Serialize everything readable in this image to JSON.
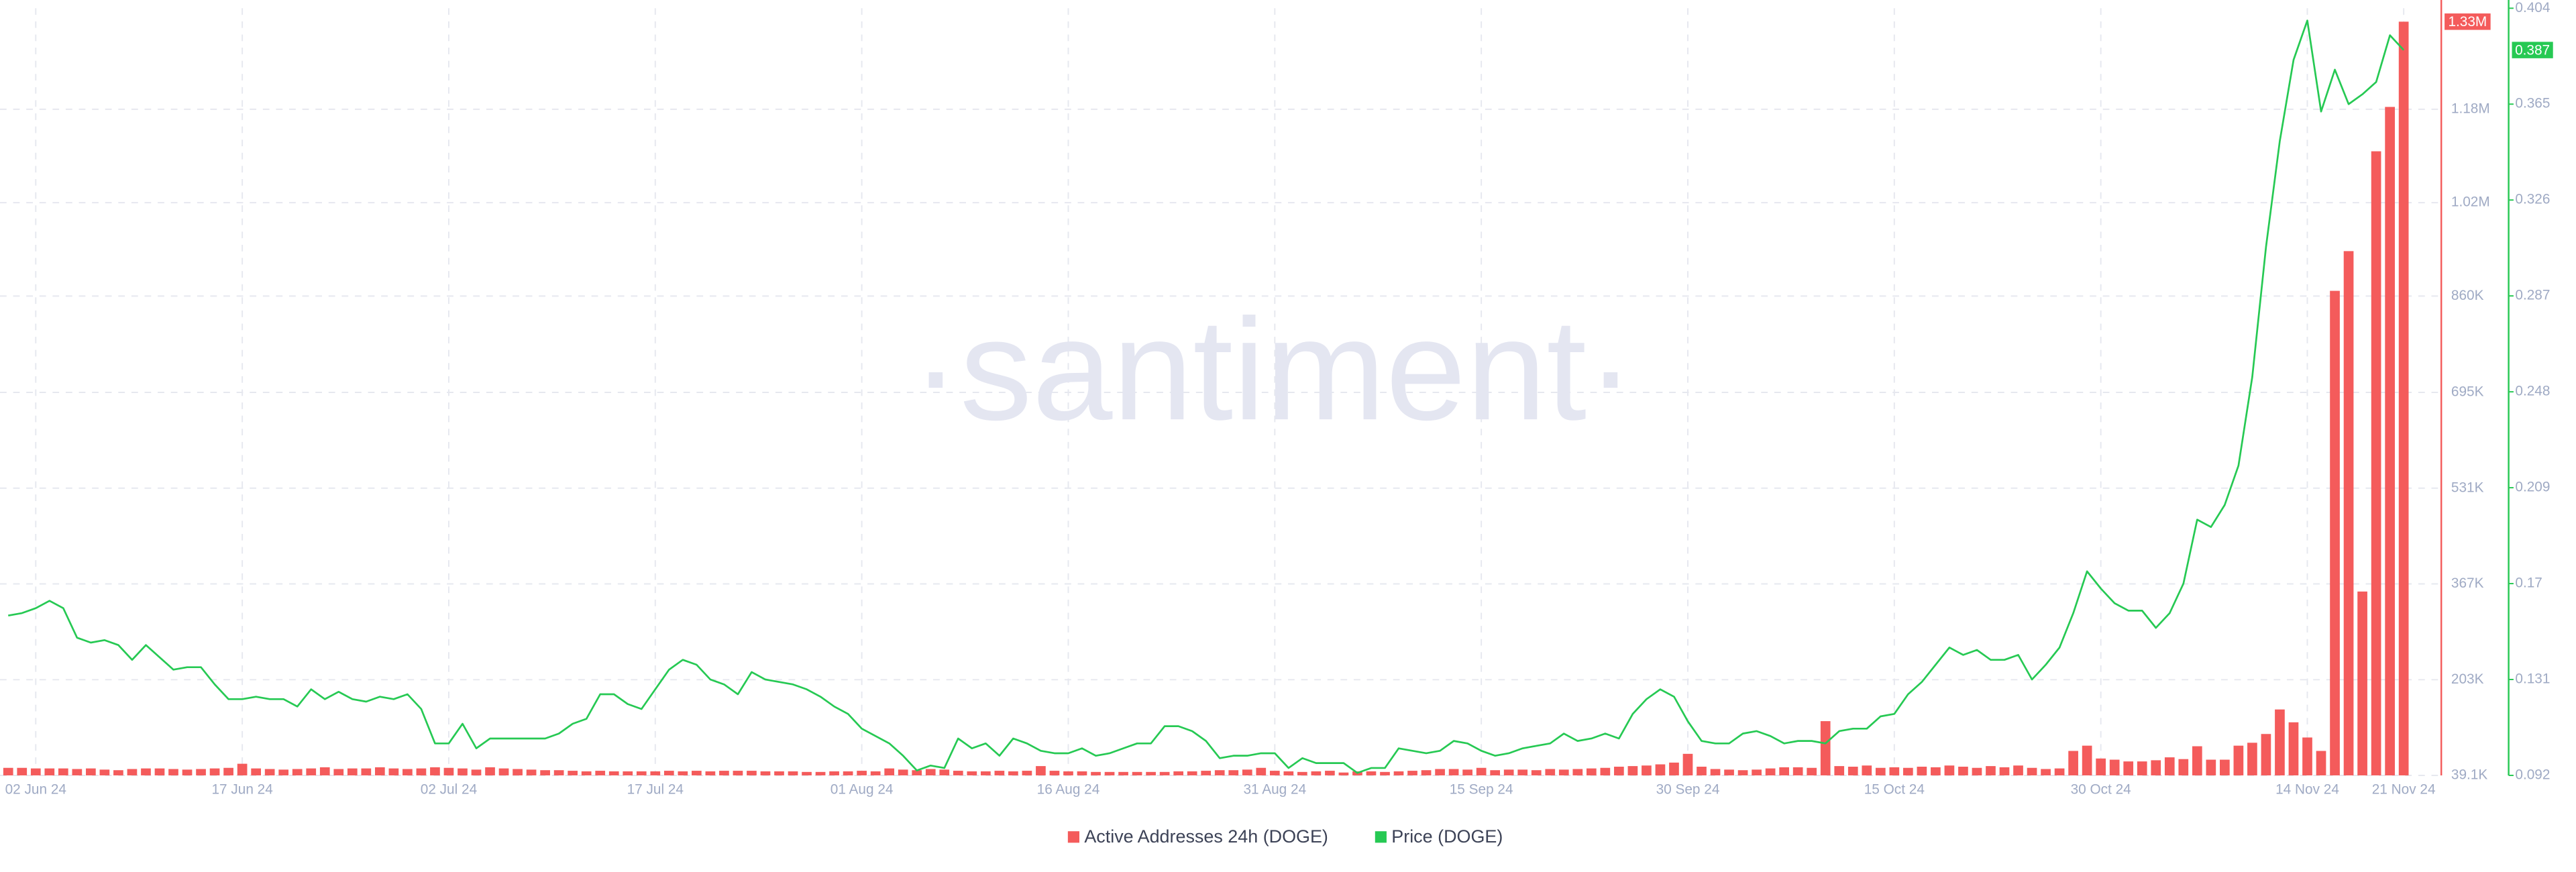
{
  "chart_data": {
    "type": "bar_line",
    "watermark": "·santiment·",
    "categories": [
      null,
      null,
      "02 Jun 24",
      null,
      null,
      null,
      null,
      null,
      null,
      null,
      null,
      null,
      null,
      null,
      null,
      null,
      null,
      "17 Jun 24",
      null,
      null,
      null,
      null,
      null,
      null,
      null,
      null,
      null,
      null,
      null,
      null,
      null,
      null,
      "02 Jul 24",
      null,
      null,
      null,
      null,
      null,
      null,
      null,
      null,
      null,
      null,
      null,
      null,
      null,
      null,
      "17 Jul 24",
      null,
      null,
      null,
      null,
      null,
      null,
      null,
      null,
      null,
      null,
      null,
      null,
      null,
      null,
      "01 Aug 24",
      null,
      null,
      null,
      null,
      null,
      null,
      null,
      null,
      null,
      null,
      null,
      null,
      null,
      null,
      "16 Aug 24",
      null,
      null,
      null,
      null,
      null,
      null,
      null,
      null,
      null,
      null,
      null,
      null,
      null,
      null,
      "31 Aug 24",
      null,
      null,
      null,
      null,
      null,
      null,
      null,
      null,
      null,
      null,
      null,
      null,
      null,
      null,
      "15 Sep 24",
      null,
      null,
      null,
      null,
      null,
      null,
      null,
      null,
      null,
      null,
      null,
      null,
      null,
      null,
      "30 Sep 24",
      null,
      null,
      null,
      null,
      null,
      null,
      null,
      null,
      null,
      null,
      null,
      null,
      null,
      null,
      "15 Oct 24",
      null,
      null,
      null,
      null,
      null,
      null,
      null,
      null,
      null,
      null,
      null,
      null,
      null,
      null,
      "30 Oct 24",
      null,
      null,
      null,
      null,
      null,
      null,
      null,
      null,
      null,
      null,
      null,
      null,
      null,
      null,
      "14 Nov 24",
      null,
      null,
      null,
      null,
      null,
      null,
      "21 Nov 24"
    ],
    "series": [
      {
        "name": "Active Addresses 24h (DOGE)",
        "type": "bar",
        "color": "#f45b5b",
        "values": [
          52000,
          52000,
          51000,
          51000,
          51000,
          50000,
          51000,
          49000,
          48000,
          50000,
          51000,
          51000,
          50000,
          49000,
          50000,
          51000,
          52000,
          59000,
          51000,
          50000,
          49000,
          50000,
          51000,
          53000,
          50000,
          51000,
          51000,
          53000,
          51000,
          50000,
          51000,
          53000,
          52000,
          51000,
          49000,
          53000,
          51000,
          50000,
          49000,
          48000,
          48000,
          47000,
          46000,
          47000,
          46000,
          46000,
          46000,
          46000,
          47000,
          46000,
          47000,
          46000,
          47000,
          47000,
          47000,
          46000,
          46000,
          46000,
          45000,
          45000,
          46000,
          46000,
          47000,
          46000,
          51000,
          49000,
          48000,
          50000,
          49000,
          47000,
          46000,
          46000,
          47000,
          46000,
          47000,
          55000,
          47000,
          46000,
          46000,
          45000,
          45000,
          45000,
          45000,
          45000,
          45000,
          46000,
          46000,
          47000,
          48000,
          48000,
          49000,
          52000,
          47000,
          46000,
          45000,
          46000,
          47000,
          44000,
          46000,
          46000,
          45000,
          46000,
          47000,
          48000,
          50000,
          50000,
          49000,
          52000,
          48000,
          49000,
          49000,
          48000,
          50000,
          49000,
          50000,
          51000,
          52000,
          54000,
          55000,
          56000,
          58000,
          61000,
          76000,
          54000,
          50000,
          49000,
          48000,
          49000,
          51000,
          53000,
          53000,
          52000,
          132000,
          55000,
          54000,
          56000,
          52000,
          53000,
          52000,
          54000,
          53000,
          56000,
          54000,
          52000,
          55000,
          53000,
          56000,
          52000,
          50000,
          51000,
          81000,
          90000,
          68000,
          66000,
          63000,
          63000,
          65000,
          70000,
          67000,
          89000,
          66000,
          66000,
          90000,
          95000,
          110000,
          152000,
          130000,
          104000,
          81000,
          869000,
          937000,
          354000,
          1108000,
          1184000,
          1330000
        ],
        "value_labels": [
          null,
          null,
          null,
          null,
          null,
          null,
          null,
          null,
          null,
          null,
          null,
          null,
          null,
          null,
          null,
          null,
          null,
          null,
          null,
          null,
          null,
          null,
          null,
          null,
          null,
          null,
          null,
          null,
          null,
          null,
          null,
          null,
          null,
          null,
          null,
          null,
          null,
          null,
          null,
          null,
          null,
          null,
          null,
          null,
          null,
          null,
          null,
          null,
          null,
          null,
          null,
          null,
          null,
          null,
          null,
          null,
          null,
          null,
          null,
          null,
          null,
          null,
          null,
          null,
          null,
          null,
          null,
          null,
          null,
          null,
          null,
          null,
          null,
          null,
          null,
          null,
          null,
          null,
          null,
          null,
          null,
          null,
          null,
          null,
          null,
          null,
          null,
          null,
          null,
          null,
          null,
          null,
          null,
          null,
          null,
          null,
          null,
          null,
          null,
          null,
          null,
          null,
          null,
          null,
          null,
          null,
          null,
          null,
          null,
          null,
          null,
          null,
          null,
          null,
          null,
          null,
          null,
          null,
          null,
          null,
          null,
          null,
          null,
          null,
          null,
          null,
          null,
          null,
          null,
          null,
          null,
          null,
          null,
          null,
          null,
          null,
          null,
          null,
          null,
          null,
          null,
          null,
          null,
          null,
          null,
          null,
          null,
          null,
          null,
          null,
          null,
          null,
          null,
          null,
          null,
          null,
          null,
          null,
          null,
          null,
          null,
          null,
          null,
          null,
          null,
          null,
          null,
          null,
          null,
          null,
          null,
          null,
          null,
          null,
          "1.33M"
        ]
      },
      {
        "name": "Price (DOGE)",
        "type": "line",
        "axis": "y2",
        "color": "#26c953",
        "values": [
          0.157,
          0.158,
          0.16,
          0.163,
          0.16,
          0.148,
          0.146,
          0.147,
          0.145,
          0.139,
          0.145,
          0.14,
          0.135,
          0.136,
          0.136,
          0.129,
          0.123,
          0.123,
          0.124,
          0.123,
          0.123,
          0.12,
          0.127,
          0.123,
          0.126,
          0.123,
          0.122,
          0.124,
          0.123,
          0.125,
          0.119,
          0.105,
          0.105,
          0.113,
          0.103,
          0.107,
          0.107,
          0.107,
          0.107,
          0.107,
          0.109,
          0.113,
          0.115,
          0.125,
          0.125,
          0.121,
          0.119,
          0.127,
          0.135,
          0.139,
          0.137,
          0.131,
          0.129,
          0.125,
          0.134,
          0.131,
          0.13,
          0.129,
          0.127,
          0.124,
          0.12,
          0.117,
          0.111,
          0.108,
          0.105,
          0.1,
          0.094,
          0.096,
          0.095,
          0.107,
          0.103,
          0.105,
          0.1,
          0.107,
          0.105,
          0.102,
          0.101,
          0.101,
          0.103,
          0.1,
          0.101,
          0.103,
          0.105,
          0.105,
          0.112,
          0.112,
          0.11,
          0.106,
          0.099,
          0.1,
          0.1,
          0.101,
          0.101,
          0.095,
          0.099,
          0.097,
          0.097,
          0.097,
          0.093,
          0.095,
          0.095,
          0.103,
          0.102,
          0.101,
          0.102,
          0.106,
          0.105,
          0.102,
          0.1,
          0.101,
          0.103,
          0.104,
          0.105,
          0.109,
          0.106,
          0.107,
          0.109,
          0.107,
          0.117,
          0.123,
          0.127,
          0.124,
          0.114,
          0.106,
          0.105,
          0.105,
          0.109,
          0.11,
          0.108,
          0.105,
          0.106,
          0.106,
          0.105,
          0.11,
          0.111,
          0.111,
          0.116,
          0.117,
          0.125,
          0.13,
          0.137,
          0.144,
          0.141,
          0.143,
          0.139,
          0.139,
          0.141,
          0.131,
          0.137,
          0.144,
          0.158,
          0.175,
          0.168,
          0.162,
          0.159,
          0.159,
          0.152,
          0.158,
          0.17,
          0.196,
          0.193,
          0.202,
          0.218,
          0.254,
          0.307,
          0.35,
          0.383,
          0.399,
          0.362,
          0.379,
          0.365,
          0.369,
          0.374,
          0.393,
          0.387
        ]
      }
    ],
    "ylim": [
      39100,
      1353000
    ],
    "yticks": [
      {
        "value": 39100,
        "label": "39.1K"
      },
      {
        "value": 203000,
        "label": "203K"
      },
      {
        "value": 367000,
        "label": "367K"
      },
      {
        "value": 531000,
        "label": "531K"
      },
      {
        "value": 695000,
        "label": "695K"
      },
      {
        "value": 860000,
        "label": "860K"
      },
      {
        "value": 1020000,
        "label": "1.02M"
      },
      {
        "value": 1180000,
        "label": "1.18M"
      }
    ],
    "y2lim": [
      0.092,
      0.404
    ],
    "y2ticks": [
      0.092,
      0.131,
      0.17,
      0.209,
      0.248,
      0.287,
      0.326,
      0.365,
      0.404
    ],
    "grid": true,
    "legend": "bottom"
  }
}
